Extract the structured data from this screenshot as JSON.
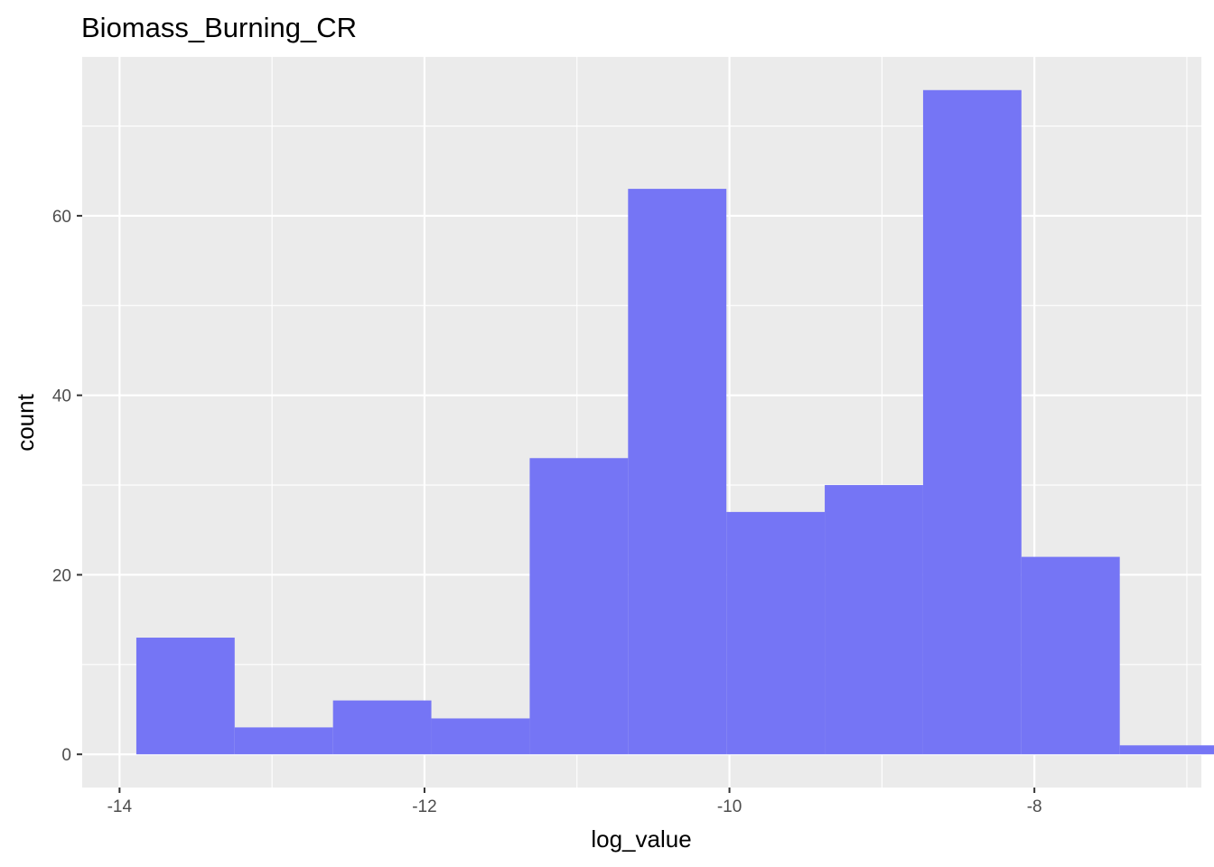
{
  "chart_data": {
    "type": "bar",
    "title": "Biomass_Burning_CR",
    "xlabel": "log_value",
    "ylabel": "count",
    "xlim": [
      -14.245,
      -6.905
    ],
    "ylim": [
      -3.7,
      77.7
    ],
    "x_ticks": [
      -14,
      -12,
      -10,
      -8
    ],
    "x_tick_labels": [
      "-14",
      "-12",
      "-10",
      "-8"
    ],
    "y_ticks": [
      0,
      20,
      40,
      60
    ],
    "y_tick_labels": [
      "0",
      "20",
      "40",
      "60"
    ],
    "bins": [
      {
        "x0": -13.89,
        "x1": -13.245,
        "count": 13
      },
      {
        "x0": -13.245,
        "x1": -12.6,
        "count": 3
      },
      {
        "x0": -12.6,
        "x1": -11.955,
        "count": 6
      },
      {
        "x0": -11.955,
        "x1": -11.31,
        "count": 4
      },
      {
        "x0": -11.31,
        "x1": -10.665,
        "count": 33
      },
      {
        "x0": -10.665,
        "x1": -10.02,
        "count": 63
      },
      {
        "x0": -10.02,
        "x1": -9.375,
        "count": 27
      },
      {
        "x0": -9.375,
        "x1": -8.73,
        "count": 30
      },
      {
        "x0": -8.73,
        "x1": -8.085,
        "count": 74
      },
      {
        "x0": -8.085,
        "x1": -7.44,
        "count": 22
      },
      {
        "x0": -7.44,
        "x1": -6.795,
        "count": 1
      }
    ],
    "fill_color": "#7575f5",
    "panel_background": "#ebebeb",
    "grid": true,
    "legend": "none"
  }
}
